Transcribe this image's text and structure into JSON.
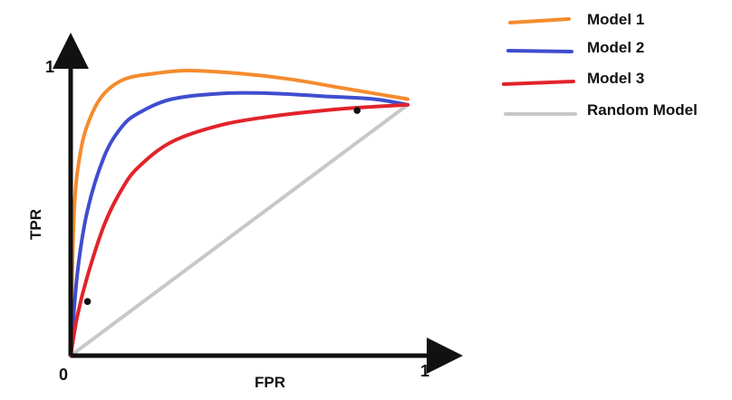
{
  "chart_data": {
    "type": "line",
    "xlabel": "FPR",
    "ylabel": "TPR",
    "xlim": [
      0,
      1
    ],
    "ylim": [
      0,
      1
    ],
    "x_ticks": [
      "0",
      "1"
    ],
    "y_ticks": [
      "1"
    ],
    "grid": false,
    "legend_position": "top-right",
    "series": [
      {
        "name": "Model 1",
        "color": "#f58b2e",
        "x": [
          0,
          0.01,
          0.03,
          0.06,
          0.1,
          0.16,
          0.25,
          0.35,
          0.5,
          0.65,
          0.8,
          1
        ],
        "y": [
          0,
          0.5,
          0.72,
          0.84,
          0.92,
          0.97,
          0.99,
          1.0,
          0.99,
          0.97,
          0.94,
          0.9
        ]
      },
      {
        "name": "Model 2",
        "color": "#3f4ecf",
        "x": [
          0,
          0.02,
          0.05,
          0.1,
          0.15,
          0.2,
          0.3,
          0.45,
          0.6,
          0.75,
          0.9,
          1
        ],
        "y": [
          0,
          0.29,
          0.51,
          0.7,
          0.8,
          0.85,
          0.9,
          0.92,
          0.92,
          0.91,
          0.9,
          0.88
        ]
      },
      {
        "name": "Model 3",
        "color": "#e2232b",
        "x": [
          0,
          0.02,
          0.05,
          0.1,
          0.15,
          0.2,
          0.3,
          0.45,
          0.6,
          0.75,
          0.85,
          1
        ],
        "y": [
          0,
          0.14,
          0.28,
          0.46,
          0.58,
          0.66,
          0.75,
          0.81,
          0.84,
          0.86,
          0.87,
          0.88
        ]
      },
      {
        "name": "Random Model",
        "color": "#c8c8c8",
        "x": [
          0,
          1
        ],
        "y": [
          0,
          0.88
        ]
      }
    ],
    "markers": [
      {
        "x": 0.05,
        "y": 0.19
      },
      {
        "x": 0.85,
        "y": 0.86
      }
    ]
  }
}
